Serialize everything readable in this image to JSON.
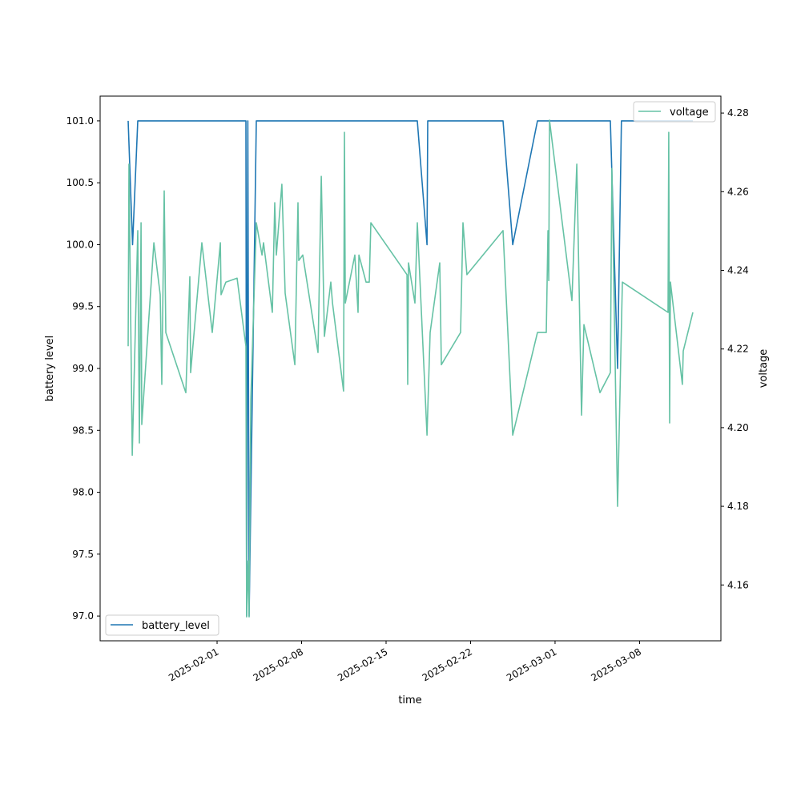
{
  "chart_data": {
    "type": "line",
    "x_unit": "days since 2025-02-01",
    "xlabel": "time",
    "ylabel_left": "battery level",
    "ylabel_right": "voltage",
    "xlim": [
      -9.69,
      41.74
    ],
    "ylim_left": [
      96.8,
      101.2
    ],
    "ylim_right": [
      4.1458,
      4.2843
    ],
    "grid": false,
    "x_ticks": [
      {
        "value": 0,
        "label": "2025-02-01"
      },
      {
        "value": 7,
        "label": "2025-02-08"
      },
      {
        "value": 14,
        "label": "2025-02-15"
      },
      {
        "value": 21,
        "label": "2025-02-22"
      },
      {
        "value": 28,
        "label": "2025-03-01"
      },
      {
        "value": 35,
        "label": "2025-03-08"
      }
    ],
    "y_ticks_left": [
      {
        "value": 97.0,
        "label": "97.0"
      },
      {
        "value": 97.5,
        "label": "97.5"
      },
      {
        "value": 98.0,
        "label": "98.0"
      },
      {
        "value": 98.5,
        "label": "98.5"
      },
      {
        "value": 99.0,
        "label": "99.0"
      },
      {
        "value": 99.5,
        "label": "99.5"
      },
      {
        "value": 100.0,
        "label": "100.0"
      },
      {
        "value": 100.5,
        "label": "100.5"
      },
      {
        "value": 101.0,
        "label": "101.0"
      }
    ],
    "y_ticks_right": [
      {
        "value": 4.16,
        "label": "4.16"
      },
      {
        "value": 4.18,
        "label": "4.18"
      },
      {
        "value": 4.2,
        "label": "4.20"
      },
      {
        "value": 4.22,
        "label": "4.22"
      },
      {
        "value": 4.24,
        "label": "4.24"
      },
      {
        "value": 4.26,
        "label": "4.26"
      },
      {
        "value": 4.28,
        "label": "4.28"
      }
    ],
    "series": [
      {
        "name": "battery_level",
        "axis": "left",
        "color": "#1f77b4",
        "legend": "lower-left",
        "x": [
          -7.37,
          -7.0,
          -6.57,
          2.39,
          2.45,
          2.55,
          2.65,
          3.25,
          16.59,
          17.39,
          17.45,
          23.69,
          24.49,
          26.54,
          32.58,
          33.18,
          33.5,
          39.42
        ],
        "y": [
          101,
          100,
          101,
          101,
          97,
          101,
          97,
          101,
          101,
          100,
          101,
          101,
          100,
          101,
          101,
          99,
          101,
          101
        ]
      },
      {
        "name": "voltage",
        "axis": "right",
        "color": "#66c2a5",
        "legend": "upper-right",
        "x": [
          -7.37,
          -7.3,
          -7.03,
          -6.57,
          -6.44,
          -6.3,
          -6.24,
          -5.24,
          -4.71,
          -4.58,
          -4.38,
          -4.25,
          -2.59,
          -2.26,
          -2.19,
          -1.26,
          -0.4,
          0.27,
          0.33,
          0.73,
          1.66,
          2.39,
          2.45,
          2.59,
          2.65,
          2.79,
          3.25,
          3.72,
          3.85,
          4.58,
          4.78,
          4.91,
          5.37,
          5.64,
          6.44,
          6.7,
          6.77,
          7.1,
          8.36,
          8.63,
          8.89,
          9.42,
          9.56,
          10.48,
          10.55,
          10.62,
          11.41,
          11.68,
          11.75,
          12.34,
          12.61,
          12.74,
          15.73,
          15.79,
          15.86,
          16.39,
          16.59,
          17.39,
          17.65,
          18.45,
          18.58,
          20.17,
          20.37,
          20.7,
          23.69,
          24.49,
          26.54,
          27.27,
          27.41,
          27.48,
          27.54,
          29.4,
          29.8,
          30.19,
          30.39,
          31.72,
          32.58,
          32.71,
          33.18,
          33.58,
          37.36,
          37.42,
          37.49,
          37.56,
          38.55,
          38.62,
          39.42
        ],
        "y": [
          4.2207,
          4.267,
          4.193,
          4.2501,
          4.1961,
          4.2521,
          4.2008,
          4.247,
          4.2338,
          4.211,
          4.2602,
          4.2242,
          4.2089,
          4.2384,
          4.214,
          4.247,
          4.2242,
          4.247,
          4.2338,
          4.237,
          4.238,
          4.2207,
          4.1519,
          4.1661,
          4.1519,
          4.2069,
          4.2521,
          4.2439,
          4.247,
          4.2293,
          4.2572,
          4.2439,
          4.2619,
          4.2342,
          4.216,
          4.2572,
          4.2425,
          4.2439,
          4.2191,
          4.2639,
          4.2232,
          4.237,
          4.2317,
          4.2093,
          4.2751,
          4.2317,
          4.2439,
          4.2293,
          4.2439,
          4.237,
          4.237,
          4.2521,
          4.2389,
          4.211,
          4.2419,
          4.2317,
          4.2521,
          4.1981,
          4.2242,
          4.2419,
          4.216,
          4.2242,
          4.2521,
          4.2389,
          4.2501,
          4.1981,
          4.2242,
          4.2242,
          4.2501,
          4.2374,
          4.2782,
          4.2323,
          4.267,
          4.2032,
          4.2262,
          4.2089,
          4.214,
          4.2659,
          4.18,
          4.237,
          4.2293,
          4.2751,
          4.2012,
          4.237,
          4.211,
          4.2195,
          4.2293
        ]
      }
    ]
  }
}
